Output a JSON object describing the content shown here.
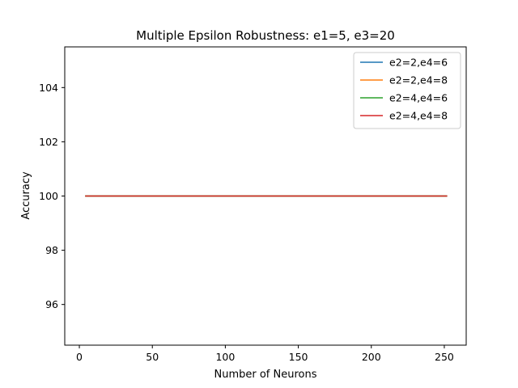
{
  "chart_data": {
    "type": "line",
    "title": "Multiple Epsilon Robustness: e1=5, e3=20",
    "xlabel": "Number of Neurons",
    "ylabel": "Accuracy",
    "xlim": [
      -10,
      265
    ],
    "ylim": [
      94.5,
      105.5
    ],
    "xticks": [
      0,
      50,
      100,
      150,
      200,
      250
    ],
    "yticks": [
      96,
      98,
      100,
      102,
      104
    ],
    "legend_position": "top-right",
    "grid": false,
    "series": [
      {
        "name": "e2=2,e4=6",
        "color": "#1f77b4",
        "x": [
          4,
          252
        ],
        "y": [
          100,
          100
        ]
      },
      {
        "name": "e2=2,e4=8",
        "color": "#ff7f0e",
        "x": [
          4,
          252
        ],
        "y": [
          100,
          100
        ]
      },
      {
        "name": "e2=4,e4=6",
        "color": "#2ca02c",
        "x": [
          4,
          252
        ],
        "y": [
          100,
          100
        ]
      },
      {
        "name": "e2=4,e4=8",
        "color": "#d62728",
        "x": [
          4,
          252
        ],
        "y": [
          100,
          100
        ]
      }
    ]
  }
}
